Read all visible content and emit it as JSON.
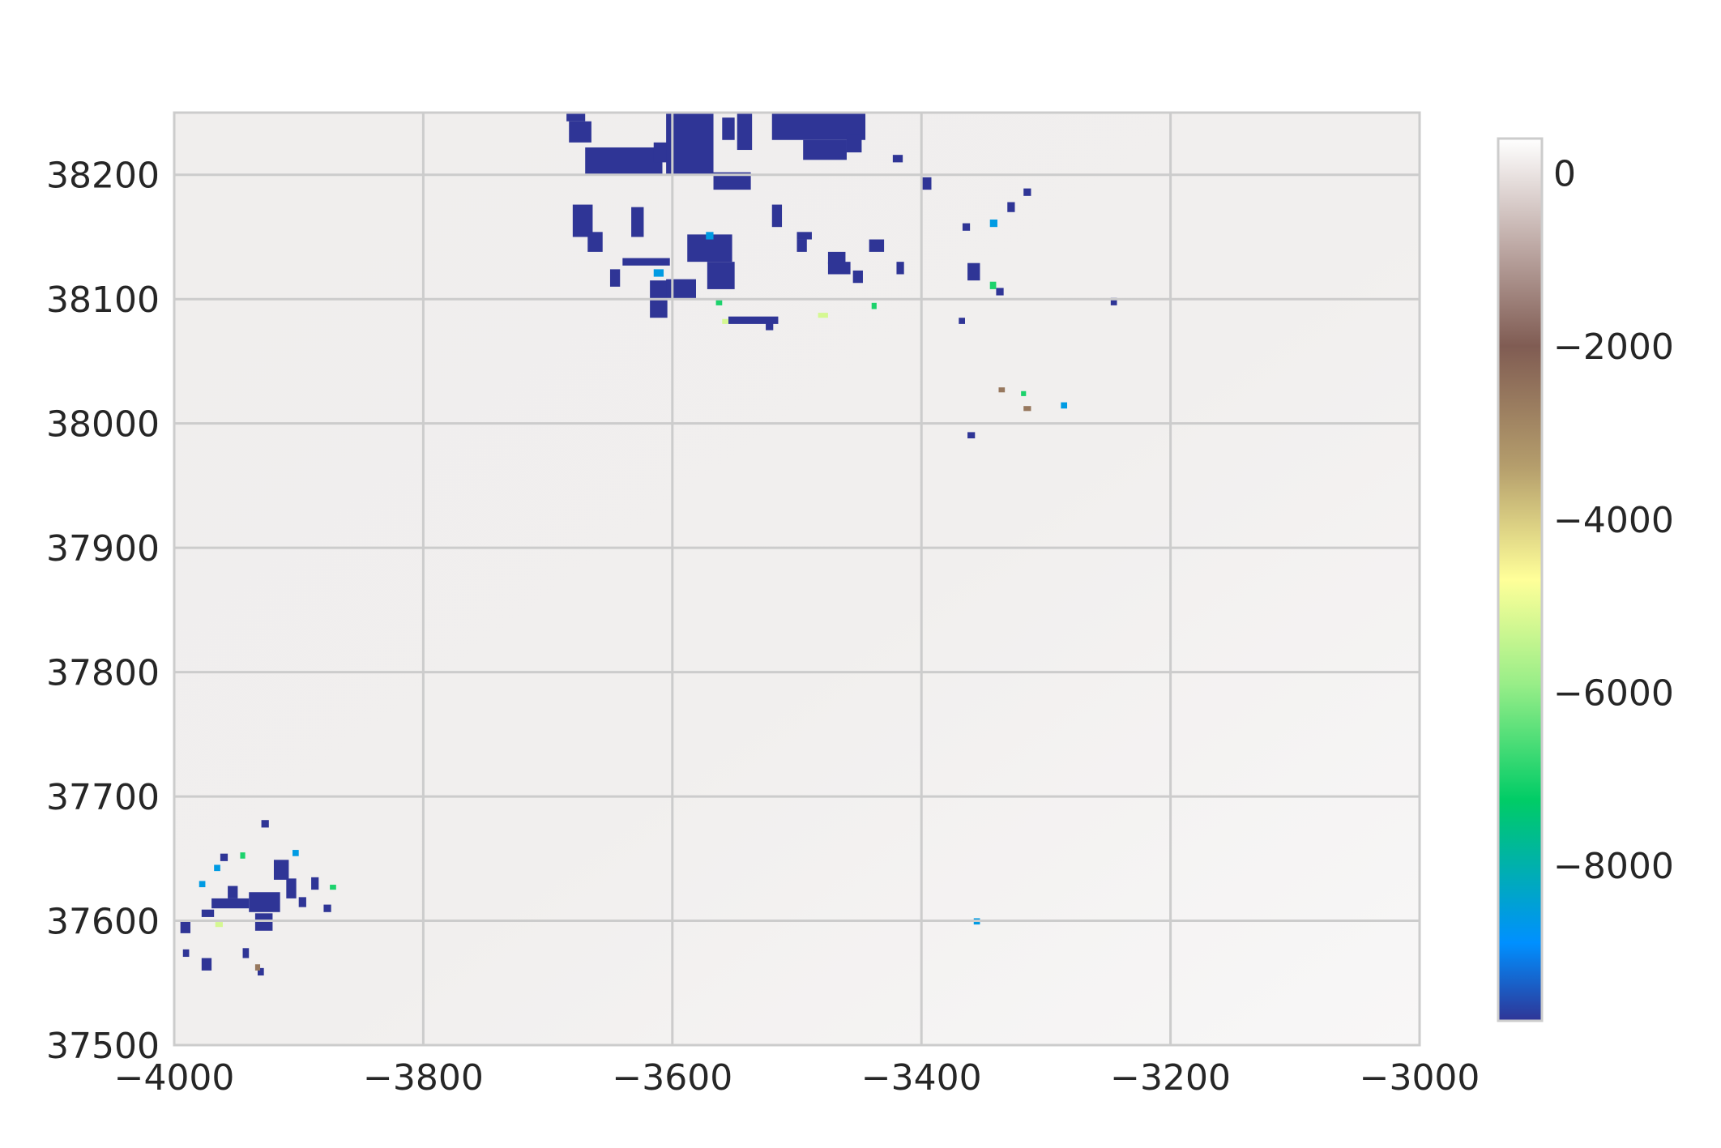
{
  "chart_data": {
    "type": "heatmap",
    "title": "",
    "xlabel": "",
    "ylabel": "",
    "xlim": [
      -4000,
      -3000
    ],
    "ylim": [
      37500,
      38250
    ],
    "xticks": [
      -4000,
      -3800,
      -3600,
      -3400,
      -3200,
      -3000
    ],
    "yticks": [
      37500,
      37600,
      37700,
      37800,
      37900,
      38000,
      38100,
      38200
    ],
    "xtick_labels": [
      "−4000",
      "−3800",
      "−3600",
      "−3400",
      "−3200",
      "−3000"
    ],
    "ytick_labels": [
      "37500",
      "37600",
      "37700",
      "37800",
      "37900",
      "38000",
      "38100",
      "38200"
    ],
    "grid": true,
    "background_value": 0,
    "colorbar": {
      "colormap": "terrain",
      "vmin": -9800,
      "vmax": 400,
      "ticks": [
        0,
        -2000,
        -4000,
        -6000,
        -8000
      ],
      "tick_labels": [
        "0",
        "−2000",
        "−4000",
        "−6000",
        "−8000"
      ],
      "stops": [
        {
          "value": -9800,
          "color": "#2f3596"
        },
        {
          "value": -8900,
          "color": "#0090ff"
        },
        {
          "value": -7250,
          "color": "#00cc66"
        },
        {
          "value": -5900,
          "color": "#99ee88"
        },
        {
          "value": -4700,
          "color": "#ffff99"
        },
        {
          "value": -3400,
          "color": "#b59e6c"
        },
        {
          "value": -2000,
          "color": "#805c53"
        },
        {
          "value": -800,
          "color": "#c0aca8"
        },
        {
          "value": 400,
          "color": "#ffffff"
        }
      ]
    },
    "regions": [
      {
        "value": -9800,
        "rects": [
          [
            -3685,
            38243,
            15,
            7
          ],
          [
            -3683,
            38226,
            18,
            17
          ],
          [
            -3670,
            38200,
            62,
            22
          ],
          [
            -3615,
            38210,
            12,
            16
          ],
          [
            -3605,
            38200,
            38,
            50
          ],
          [
            -3567,
            38188,
            30,
            14
          ],
          [
            -3560,
            38228,
            10,
            18
          ],
          [
            -3548,
            38220,
            12,
            30
          ],
          [
            -3520,
            38228,
            75,
            22
          ],
          [
            -3495,
            38212,
            35,
            16
          ],
          [
            -3460,
            38218,
            12,
            14
          ],
          [
            -3680,
            38150,
            16,
            26
          ],
          [
            -3668,
            38138,
            12,
            16
          ],
          [
            -3633,
            38150,
            10,
            24
          ],
          [
            -3640,
            38127,
            38,
            6
          ],
          [
            -3588,
            38130,
            36,
            22
          ],
          [
            -3572,
            38108,
            22,
            22
          ],
          [
            -3618,
            38085,
            14,
            30
          ],
          [
            -3605,
            38100,
            24,
            16
          ],
          [
            -3650,
            38110,
            8,
            14
          ],
          [
            -3520,
            38158,
            8,
            18
          ],
          [
            -3500,
            38138,
            8,
            10
          ],
          [
            -3475,
            38128,
            14,
            10
          ],
          [
            -3455,
            38113,
            8,
            10
          ],
          [
            -3475,
            38120,
            18,
            10
          ],
          [
            -3442,
            38138,
            12,
            10
          ],
          [
            -3420,
            38120,
            6,
            10
          ],
          [
            -3363,
            38115,
            10,
            14
          ],
          [
            -3400,
            38188,
            8,
            10
          ],
          [
            -3367,
            38155,
            6,
            6
          ],
          [
            -3331,
            38170,
            6,
            8
          ],
          [
            -3318,
            38183,
            6,
            6
          ],
          [
            -3340,
            38103,
            6,
            6
          ],
          [
            -3370,
            38080,
            5,
            5
          ],
          [
            -3555,
            38080,
            40,
            6
          ],
          [
            -3525,
            38075,
            6,
            6
          ],
          [
            -3248,
            38095,
            5,
            6
          ],
          [
            -3500,
            38148,
            12,
            6
          ],
          [
            -3423,
            38210,
            8,
            6
          ],
          [
            -3363,
            37988,
            6,
            5
          ],
          [
            -3920,
            37633,
            12,
            16
          ],
          [
            -3910,
            37618,
            8,
            16
          ],
          [
            -3940,
            37607,
            25,
            16
          ],
          [
            -3935,
            37592,
            14,
            14
          ],
          [
            -3970,
            37610,
            30,
            8
          ],
          [
            -3978,
            37603,
            10,
            6
          ],
          [
            -3995,
            37590,
            8,
            10
          ],
          [
            -3978,
            37560,
            8,
            10
          ],
          [
            -3957,
            37618,
            8,
            10
          ],
          [
            -3890,
            37625,
            6,
            10
          ],
          [
            -3880,
            37607,
            6,
            6
          ],
          [
            -3900,
            37611,
            6,
            8
          ],
          [
            -3945,
            37570,
            5,
            8
          ],
          [
            -3963,
            37648,
            6,
            6
          ],
          [
            -3930,
            37675,
            6,
            6
          ],
          [
            -3933,
            37556,
            5,
            6
          ],
          [
            -3993,
            37571,
            5,
            6
          ]
        ]
      },
      {
        "value": -8600,
        "rects": [
          [
            -3615,
            38118,
            8,
            6
          ],
          [
            -3573,
            38148,
            6,
            6
          ],
          [
            -3345,
            38158,
            6,
            6
          ],
          [
            -3968,
            37640,
            5,
            5
          ],
          [
            -3980,
            37627,
            5,
            5
          ],
          [
            -3905,
            37652,
            5,
            5
          ],
          [
            -3288,
            38012,
            5,
            5
          ],
          [
            -3358,
            37597,
            5,
            5
          ]
        ]
      },
      {
        "value": -7000,
        "rects": [
          [
            -3345,
            38108,
            5,
            6
          ],
          [
            -3565,
            38095,
            5,
            5
          ],
          [
            -3947,
            37650,
            4,
            5
          ],
          [
            -3875,
            37625,
            5,
            4
          ],
          [
            -3440,
            38092,
            4,
            5
          ],
          [
            -3320,
            38022,
            4,
            4
          ]
        ]
      },
      {
        "value": -5200,
        "rects": [
          [
            -3483,
            38085,
            8,
            4
          ],
          [
            -3967,
            37595,
            6,
            4
          ],
          [
            -3560,
            38080,
            5,
            4
          ]
        ]
      },
      {
        "value": -2600,
        "rects": [
          [
            -3338,
            38025,
            5,
            4
          ],
          [
            -3318,
            38010,
            6,
            4
          ],
          [
            -3935,
            37560,
            4,
            5
          ]
        ]
      }
    ]
  }
}
